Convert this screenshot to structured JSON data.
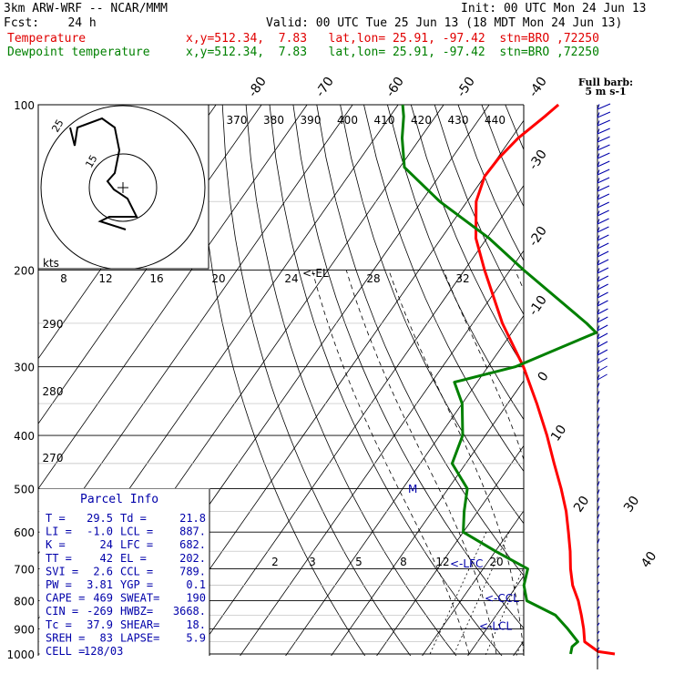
{
  "header": {
    "model": "3km ARW-WRF -- NCAR/MMM",
    "init": "Init: 00 UTC Mon 24 Jun 13",
    "fcst": "Fcst:    24 h",
    "valid": "Valid: 00 UTC Tue 25 Jun 13 (18 MDT Mon 24 Jun 13)",
    "temp_label": "Temperature",
    "temp_info": "x,y=512.34,  7.83   lat,lon= 25.91, -97.42  stn=BRO ,72250",
    "dew_label": "Dewpoint temperature",
    "dew_info": "x,y=512.34,  7.83   lat,lon= 25.91, -97.42  stn=BRO ,72250"
  },
  "barb_legend": {
    "line1": "Full barb:",
    "line2": "5 m s-1"
  },
  "hodograph": {
    "units": "kts",
    "ring_labels": [
      "25",
      "15"
    ],
    "speed_ticks": [
      "8",
      "12",
      "16",
      "20",
      "24",
      "28",
      "32"
    ]
  },
  "parcel_info": {
    "title": "Parcel Info",
    "rows": [
      [
        "T  =",
        "29.5",
        "Td =",
        "21.8"
      ],
      [
        "LI =",
        "-1.0",
        "LCL =",
        "887."
      ],
      [
        "K  =",
        "24",
        "LFC =",
        "682."
      ],
      [
        "TT =",
        "42",
        "EL =",
        "202."
      ],
      [
        "SVI =",
        "2.6",
        "CCL =",
        "789."
      ],
      [
        "PW =",
        "3.81",
        "YGP =",
        "0.1"
      ],
      [
        "CAPE =",
        "469",
        "SWEAT=",
        "190"
      ],
      [
        "CIN =",
        "-269",
        "HWBZ=",
        "3668."
      ],
      [
        "Tc =",
        "37.9",
        "SHEAR=",
        "18."
      ],
      [
        "SREH =",
        "83",
        "LAPSE=",
        "5.9"
      ],
      [
        "CELL =",
        "128/03",
        "",
        ""
      ]
    ]
  },
  "chart_data": {
    "type": "line",
    "title": "",
    "ylabel": "",
    "xlabel": "",
    "pressure_levels": [
      100,
      200,
      300,
      400,
      500,
      600,
      700,
      800,
      900,
      1000
    ],
    "isotherm_labels": [
      "-80",
      "-70",
      "-60",
      "-50",
      "-40",
      "-30",
      "-20",
      "-10",
      "0",
      "10",
      "20",
      "30",
      "40"
    ],
    "theta_labels": [
      "370",
      "380",
      "390",
      "400",
      "410",
      "420",
      "430",
      "440"
    ],
    "theta_low_labels": [
      "290",
      "280",
      "270"
    ],
    "mixing_ratio_labels": [
      "2",
      "3",
      "5",
      "8",
      "12",
      "20"
    ],
    "level_markers": [
      {
        "label": "<-EL",
        "pressure": 202
      },
      {
        "label": "<-LFC",
        "pressure": 682
      },
      {
        "label": "<-CCL",
        "pressure": 789
      },
      {
        "label": "<-LCL",
        "pressure": 887
      }
    ],
    "freezing_marker": "M",
    "temperature": {
      "name": "Temperature",
      "color": "#ff0000",
      "points": [
        [
          1000,
          32
        ],
        [
          990,
          28
        ],
        [
          950,
          23.5
        ],
        [
          900,
          21.3
        ],
        [
          850,
          18.7
        ],
        [
          800,
          15.8
        ],
        [
          750,
          12.2
        ],
        [
          700,
          9.2
        ],
        [
          650,
          6.4
        ],
        [
          600,
          3.1
        ],
        [
          550,
          -0.6
        ],
        [
          500,
          -5.2
        ],
        [
          450,
          -10.6
        ],
        [
          400,
          -16.5
        ],
        [
          350,
          -23.6
        ],
        [
          300,
          -32.2
        ],
        [
          250,
          -43.5
        ],
        [
          200,
          -55.6
        ],
        [
          175,
          -62.4
        ],
        [
          150,
          -68
        ],
        [
          135,
          -70
        ],
        [
          125,
          -69.7
        ],
        [
          115,
          -68.5
        ],
        [
          105,
          -66
        ],
        [
          100,
          -64.8
        ]
      ]
    },
    "dewpoint": {
      "name": "Dewpoint temperature",
      "color": "#008000",
      "points": [
        [
          1000,
          22.3
        ],
        [
          970,
          21.5
        ],
        [
          950,
          22
        ],
        [
          900,
          17.8
        ],
        [
          850,
          13
        ],
        [
          800,
          4.5
        ],
        [
          750,
          1.5
        ],
        [
          700,
          -0.2
        ],
        [
          650,
          -10
        ],
        [
          600,
          -20
        ],
        [
          550,
          -23
        ],
        [
          500,
          -25.8
        ],
        [
          450,
          -33
        ],
        [
          400,
          -35
        ],
        [
          350,
          -40
        ],
        [
          320,
          -45
        ],
        [
          300,
          -34
        ],
        [
          260,
          -21.5
        ],
        [
          250,
          -25
        ],
        [
          200,
          -47
        ],
        [
          175,
          -59.5
        ],
        [
          150,
          -76
        ],
        [
          130,
          -89
        ],
        [
          115,
          -94
        ],
        [
          105,
          -97
        ],
        [
          100,
          -99
        ]
      ]
    },
    "wind_barbs": "column of wind barbs along right edge"
  }
}
